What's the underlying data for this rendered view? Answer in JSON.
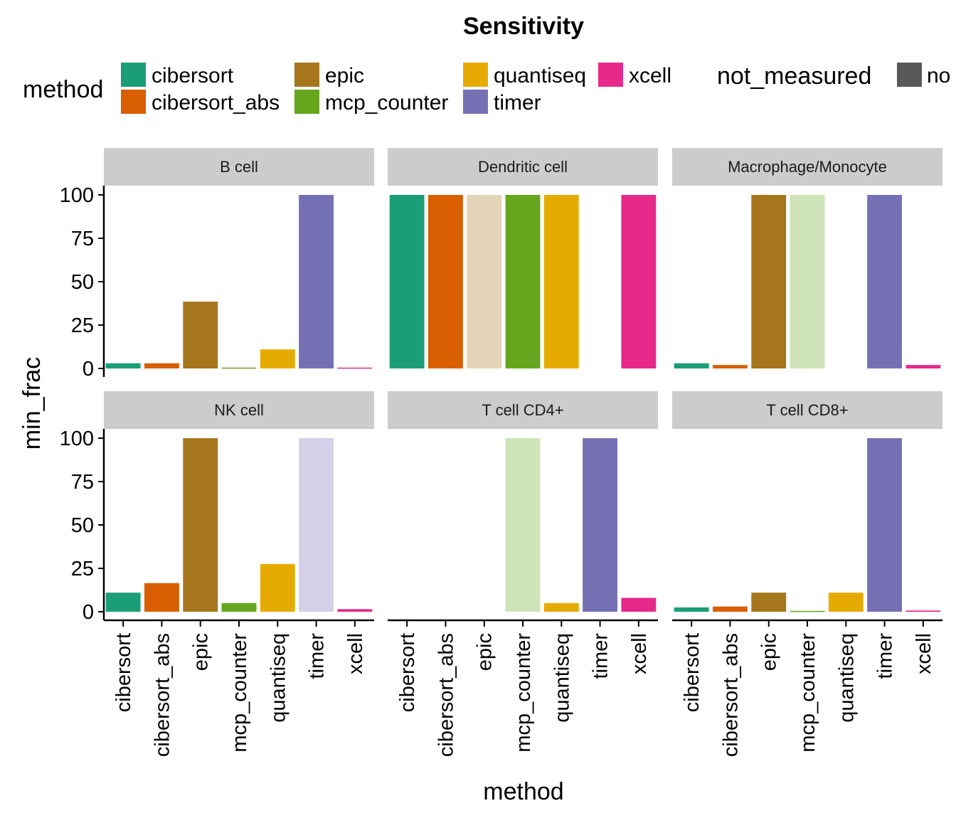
{
  "chart_data": {
    "type": "bar",
    "title": "Sensitivity",
    "xlabel": "method",
    "ylabel": "min_frac",
    "ylim": [
      0,
      100
    ],
    "yticks": [
      0,
      25,
      50,
      75,
      100
    ],
    "categories": [
      "cibersort",
      "cibersort_abs",
      "epic",
      "mcp_counter",
      "quantiseq",
      "timer",
      "xcell"
    ],
    "colors": {
      "cibersort": "#1b9e77",
      "cibersort_abs": "#d95f02",
      "epic": "#a6761d",
      "mcp_counter": "#66a61e",
      "quantiseq": "#e6ab02",
      "timer": "#7570b3",
      "xcell": "#e7298a",
      "not_measured": "#595959"
    },
    "legend": {
      "method_title": "method",
      "method_entries": [
        {
          "key": "cibersort",
          "label": "cibersort"
        },
        {
          "key": "cibersort_abs",
          "label": "cibersort_abs"
        },
        {
          "key": "epic",
          "label": "epic"
        },
        {
          "key": "mcp_counter",
          "label": "mcp_counter"
        },
        {
          "key": "quantiseq",
          "label": "quantiseq"
        },
        {
          "key": "timer",
          "label": "timer"
        },
        {
          "key": "xcell",
          "label": "xcell"
        }
      ],
      "not_measured_title": "not_measured",
      "not_measured_entries": [
        {
          "key": "not_measured",
          "label": "no"
        }
      ]
    },
    "legend_position": "top",
    "grid": false,
    "panels": [
      {
        "name": "B cell",
        "values": [
          3,
          3,
          38.5,
          0.5,
          11,
          100,
          0.5
        ],
        "faded": [
          false,
          false,
          false,
          false,
          false,
          false,
          false
        ]
      },
      {
        "name": "Dendritic cell",
        "values": [
          100,
          100,
          100,
          100,
          100,
          null,
          100
        ],
        "faded": [
          false,
          false,
          true,
          false,
          false,
          false,
          false
        ]
      },
      {
        "name": "Macrophage/Monocyte",
        "values": [
          3,
          2,
          100,
          100,
          null,
          100,
          2
        ],
        "faded": [
          false,
          false,
          false,
          true,
          false,
          false,
          false
        ]
      },
      {
        "name": "NK cell",
        "values": [
          11,
          16.5,
          100,
          5,
          27.5,
          100,
          1.5
        ],
        "faded": [
          false,
          false,
          false,
          false,
          false,
          true,
          false
        ]
      },
      {
        "name": "T cell CD4+",
        "values": [
          null,
          null,
          null,
          100,
          5,
          100,
          8
        ],
        "faded": [
          false,
          false,
          false,
          true,
          false,
          false,
          false
        ]
      },
      {
        "name": "T cell CD8+",
        "values": [
          2.5,
          3,
          11,
          0.5,
          11,
          100,
          0.7
        ],
        "faded": [
          false,
          false,
          false,
          false,
          false,
          false,
          false
        ]
      }
    ]
  }
}
